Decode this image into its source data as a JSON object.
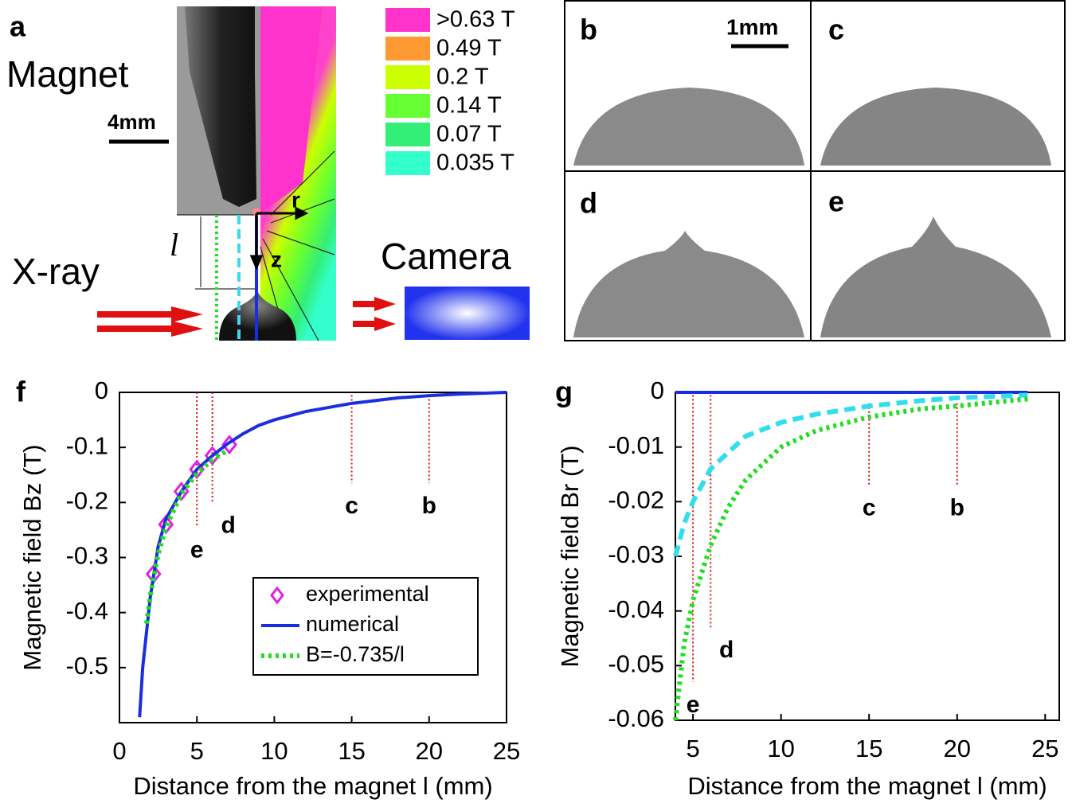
{
  "panel_a": {
    "label": "a",
    "magnet": "Magnet",
    "scale": "4mm",
    "xray": "X-ray",
    "l": "l",
    "r": "r",
    "z": "z",
    "camera": "Camera",
    "field_legend": [
      {
        "label": ">0.63 T",
        "color": "#ff33cc"
      },
      {
        "label": "0.49 T",
        "color": "#ff9933"
      },
      {
        "label": "0.2 T",
        "color": "#ccff00"
      },
      {
        "label": "0.14 T",
        "color": "#66ff33"
      },
      {
        "label": "0.07 T",
        "color": "#33ee77"
      },
      {
        "label": "0.035 T",
        "color": "#33ffcc"
      }
    ]
  },
  "image_panels": {
    "labels": [
      "b",
      "c",
      "d",
      "e"
    ],
    "scale": "1mm"
  },
  "chart_data": [
    {
      "type": "line",
      "panel_label": "f",
      "xlabel": "Distance from the magnet l (mm)",
      "ylabel": "Magnetic field Bz (T)",
      "xlim": [
        0,
        25
      ],
      "ylim": [
        -0.6,
        0
      ],
      "xticks": [
        0,
        5,
        10,
        15,
        20,
        25
      ],
      "yticks": [
        0,
        -0.1,
        -0.2,
        -0.3,
        -0.4,
        -0.5
      ],
      "legend": "lower right",
      "series": [
        {
          "name": "experimental",
          "color": "#e020e0",
          "style": "diamond",
          "x": [
            2.2,
            3,
            4,
            5,
            6,
            7.1
          ],
          "values": [
            -0.33,
            -0.24,
            -0.18,
            -0.14,
            -0.115,
            -0.095
          ]
        },
        {
          "name": "numerical",
          "color": "#1a2ee0",
          "style": "solid",
          "x": [
            1.3,
            1.5,
            2,
            2.5,
            3,
            4,
            5,
            6,
            7,
            8,
            9,
            10,
            12,
            15,
            18,
            20,
            22,
            25
          ],
          "values": [
            -0.59,
            -0.5,
            -0.37,
            -0.28,
            -0.23,
            -0.18,
            -0.14,
            -0.115,
            -0.093,
            -0.075,
            -0.06,
            -0.05,
            -0.035,
            -0.02,
            -0.01,
            -0.006,
            -0.003,
            0
          ]
        },
        {
          "name": "B=-0.735/l",
          "color": "#22dd22",
          "style": "dotted",
          "x": [
            1.75,
            2,
            2.5,
            3,
            4,
            5,
            6,
            7
          ],
          "values": [
            -0.42,
            -0.3675,
            -0.294,
            -0.245,
            -0.184,
            -0.147,
            -0.1225,
            -0.105
          ]
        }
      ],
      "markers": [
        {
          "x": 5,
          "y": [
            0,
            -0.245
          ],
          "label": "e"
        },
        {
          "x": 6,
          "y": [
            0,
            -0.2
          ],
          "label": "d"
        },
        {
          "x": 15,
          "y": [
            -0.005,
            -0.165
          ],
          "label": "c"
        },
        {
          "x": 20,
          "y": [
            -0.005,
            -0.165
          ],
          "label": "b"
        }
      ]
    },
    {
      "type": "line",
      "panel_label": "g",
      "xlabel": "Distance from the magnet l (mm)",
      "ylabel": "Magnetic field Br (T)",
      "xlim": [
        4,
        25.8
      ],
      "ylim": [
        -0.06,
        0
      ],
      "xticks": [
        5,
        10,
        15,
        20,
        25
      ],
      "yticks": [
        0,
        -0.01,
        -0.02,
        -0.03,
        -0.04,
        -0.05,
        -0.06
      ],
      "series": [
        {
          "color": "#1a2ee0",
          "style": "solid",
          "x": [
            4,
            24
          ],
          "values": [
            0,
            0
          ]
        },
        {
          "color": "#33ddee",
          "style": "dashed",
          "x": [
            4,
            4.5,
            5,
            6,
            8,
            10,
            12,
            15,
            18,
            20,
            24
          ],
          "values": [
            -0.03,
            -0.024,
            -0.02,
            -0.014,
            -0.008,
            -0.0055,
            -0.004,
            -0.0025,
            -0.0015,
            -0.001,
            -0.0005
          ]
        },
        {
          "color": "#22dd22",
          "style": "dotted",
          "x": [
            4,
            4.5,
            5,
            6,
            7,
            8,
            10,
            12,
            15,
            18,
            20,
            24
          ],
          "values": [
            -0.06,
            -0.046,
            -0.038,
            -0.028,
            -0.021,
            -0.016,
            -0.01,
            -0.007,
            -0.0045,
            -0.003,
            -0.0025,
            -0.0012
          ]
        }
      ],
      "markers": [
        {
          "x": 5,
          "y": [
            -0.0005,
            -0.053
          ],
          "label": "e"
        },
        {
          "x": 6,
          "y": [
            -0.0005,
            -0.043
          ],
          "label": "d"
        },
        {
          "x": 15,
          "y": [
            -0.002,
            -0.017
          ],
          "label": "c"
        },
        {
          "x": 20,
          "y": [
            -0.002,
            -0.017
          ],
          "label": "b"
        }
      ]
    }
  ]
}
